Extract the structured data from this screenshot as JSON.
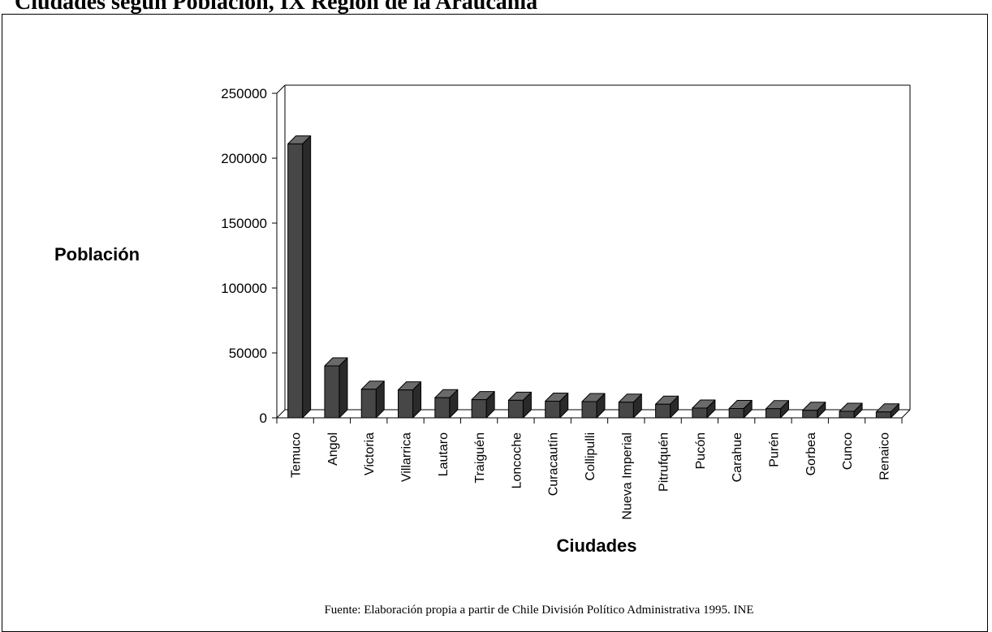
{
  "page": {
    "title": "Ciudades según Población, IX Región de la Araucanía"
  },
  "chart_data": {
    "type": "bar",
    "title": "",
    "xlabel": "Ciudades",
    "ylabel": "Población",
    "ylim": [
      0,
      250000
    ],
    "yticks": [
      0,
      50000,
      100000,
      150000,
      200000,
      250000
    ],
    "grid": false,
    "legend": "none",
    "bar_color": "#474747",
    "categories": [
      "Temuco",
      "Angol",
      "Victoria",
      "Villarrica",
      "Lautaro",
      "Traiguén",
      "Loncoche",
      "Curacautín",
      "Collipulli",
      "Nueva Imperial",
      "Pitrufquén",
      "Pucón",
      "Carahue",
      "Purén",
      "Gorbea",
      "Cunco",
      "Renaico"
    ],
    "values": [
      211000,
      40000,
      22000,
      21500,
      15500,
      14000,
      13500,
      12800,
      12500,
      12000,
      10500,
      7500,
      7200,
      7000,
      5800,
      5000,
      4500
    ],
    "source": "Fuente: Elaboración propia a partir de Chile División Político Administrativa 1995. INE"
  }
}
